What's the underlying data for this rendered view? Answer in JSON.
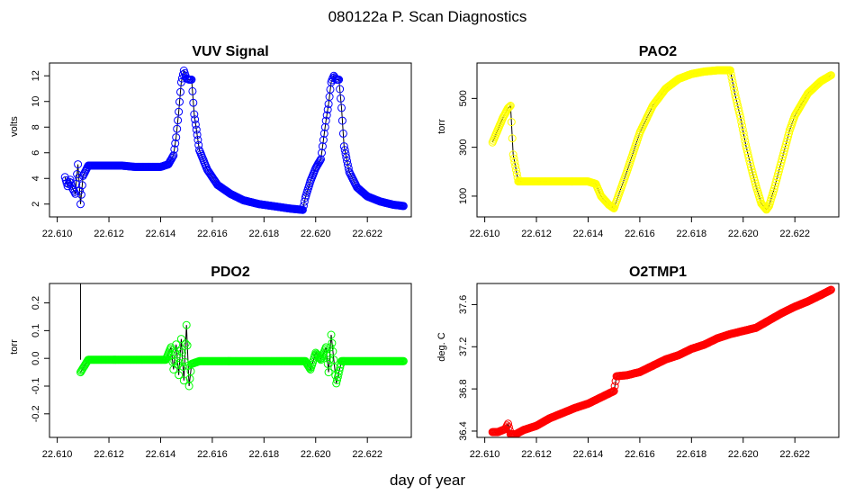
{
  "figure": {
    "title": "080122a   P. Scan Diagnostics",
    "xlabel": "day of year"
  },
  "chart_data": [
    {
      "type": "scatter",
      "title": "VUV Signal",
      "ylabel": "volts",
      "point_color": "#0000ff",
      "line_color": "#000000",
      "xlim": [
        22.6097,
        22.6237
      ],
      "ylim": [
        1.0,
        13.0
      ],
      "xticks": [
        22.61,
        22.612,
        22.614,
        22.616,
        22.618,
        22.62,
        22.622
      ],
      "xtick_labels": [
        "22.610",
        "22.612",
        "22.614",
        "22.616",
        "22.618",
        "22.620",
        "22.622"
      ],
      "yticks": [
        2,
        4,
        6,
        8,
        10,
        12
      ],
      "ytick_labels": [
        "2",
        "4",
        "6",
        "8",
        "10",
        "12"
      ],
      "series": [
        {
          "name": "VUV",
          "x": [
            22.6103,
            22.6104,
            22.6105,
            22.6106,
            22.6107,
            22.6108,
            22.6109,
            22.611,
            22.6112,
            22.6115,
            22.612,
            22.6125,
            22.613,
            22.6135,
            22.614,
            22.6143,
            22.6145,
            22.6146,
            22.6147,
            22.6148,
            22.6149,
            22.615,
            22.6151,
            22.6152,
            22.6153,
            22.6155,
            22.6158,
            22.6162,
            22.6167,
            22.6172,
            22.6178,
            22.6185,
            22.619,
            22.6195,
            22.6196,
            22.6198,
            22.62,
            22.6202,
            22.6203,
            22.6204,
            22.6205,
            22.6206,
            22.6207,
            22.6208,
            22.6209,
            22.621,
            22.6211,
            22.6213,
            22.6216,
            22.622,
            22.6225,
            22.623,
            22.6234
          ],
          "y": [
            4.1,
            3.4,
            3.9,
            3.2,
            2.8,
            5.1,
            2.0,
            4.2,
            5.0,
            5.0,
            5.0,
            5.0,
            4.9,
            4.9,
            4.9,
            5.1,
            5.8,
            7.2,
            9.2,
            11.5,
            12.4,
            11.8,
            11.7,
            11.7,
            9.0,
            6.2,
            4.7,
            3.5,
            2.8,
            2.3,
            2.0,
            1.8,
            1.65,
            1.55,
            2.5,
            3.8,
            4.8,
            5.5,
            7.0,
            8.5,
            9.8,
            11.5,
            12.0,
            11.7,
            11.7,
            9.5,
            6.5,
            4.5,
            3.3,
            2.6,
            2.2,
            1.95,
            1.85
          ]
        }
      ]
    },
    {
      "type": "scatter",
      "title": "PAO2",
      "ylabel": "torr",
      "point_color": "#ffff00",
      "line_color": "#000000",
      "xlim": [
        22.6097,
        22.6237
      ],
      "ylim": [
        15,
        645
      ],
      "xticks": [
        22.61,
        22.612,
        22.614,
        22.616,
        22.618,
        22.62,
        22.622
      ],
      "xtick_labels": [
        "22.610",
        "22.612",
        "22.614",
        "22.616",
        "22.618",
        "22.620",
        "22.622"
      ],
      "yticks": [
        100,
        300,
        500
      ],
      "ytick_labels": [
        "100",
        "300",
        "500"
      ],
      "series": [
        {
          "name": "PAO2",
          "x": [
            22.6103,
            22.6105,
            22.6107,
            22.6109,
            22.611,
            22.6111,
            22.6113,
            22.6118,
            22.6125,
            22.613,
            22.6135,
            22.614,
            22.6143,
            22.6145,
            22.6148,
            22.615,
            22.6152,
            22.6155,
            22.616,
            22.6165,
            22.617,
            22.6175,
            22.618,
            22.6185,
            22.619,
            22.6195,
            22.6197,
            22.6199,
            22.6201,
            22.6203,
            22.6205,
            22.6207,
            22.6209,
            22.621,
            22.6212,
            22.6215,
            22.6218,
            22.622,
            22.6225,
            22.623,
            22.6234
          ],
          "y": [
            320,
            370,
            420,
            460,
            470,
            270,
            160,
            160,
            160,
            160,
            160,
            160,
            150,
            100,
            65,
            50,
            110,
            200,
            360,
            470,
            540,
            580,
            600,
            610,
            615,
            615,
            510,
            420,
            310,
            220,
            140,
            70,
            45,
            60,
            130,
            250,
            370,
            430,
            520,
            570,
            595
          ]
        }
      ]
    },
    {
      "type": "scatter",
      "title": "PDO2",
      "ylabel": "torr",
      "point_color": "#00ff00",
      "line_color": "#000000",
      "xlim": [
        22.6097,
        22.6237
      ],
      "ylim": [
        -0.285,
        0.27
      ],
      "xticks": [
        22.61,
        22.612,
        22.614,
        22.616,
        22.618,
        22.62,
        22.622
      ],
      "xtick_labels": [
        "22.610",
        "22.612",
        "22.614",
        "22.616",
        "22.618",
        "22.620",
        "22.622"
      ],
      "yticks": [
        -0.2,
        -0.1,
        0.0,
        0.1,
        0.2
      ],
      "ytick_labels": [
        "-0.2",
        "-0.1",
        "0.0",
        "0.1",
        "0.2"
      ],
      "series": [
        {
          "name": "PDO2",
          "x": [
            22.6109,
            22.6112,
            22.6125,
            22.6135,
            22.6142,
            22.6144,
            22.6145,
            22.6146,
            22.6147,
            22.6148,
            22.6149,
            22.615,
            22.6151,
            22.6152,
            22.6155,
            22.617,
            22.618,
            22.619,
            22.6196,
            22.6198,
            22.62,
            22.6202,
            22.6204,
            22.6205,
            22.6206,
            22.6207,
            22.6208,
            22.621,
            22.6215,
            22.622,
            22.6225,
            22.6234
          ],
          "y": [
            -0.05,
            -0.005,
            -0.005,
            -0.005,
            -0.005,
            0.04,
            -0.04,
            0.05,
            -0.06,
            0.07,
            -0.08,
            0.12,
            -0.1,
            -0.02,
            -0.01,
            -0.01,
            -0.01,
            -0.01,
            -0.01,
            -0.04,
            0.02,
            -0.005,
            0.04,
            -0.05,
            0.085,
            -0.005,
            -0.09,
            -0.01,
            -0.01,
            -0.01,
            -0.01,
            -0.01
          ]
        }
      ],
      "spike": {
        "x": 22.6109,
        "y_top": 0.27,
        "y_bottom": -0.005
      }
    },
    {
      "type": "scatter",
      "title": "O2TMP1",
      "ylabel": "deg. C",
      "point_color": "#ff0000",
      "line_color": "#000000",
      "xlim": [
        22.6097,
        22.6237
      ],
      "ylim": [
        36.34,
        37.8
      ],
      "xticks": [
        22.61,
        22.612,
        22.614,
        22.616,
        22.618,
        22.62,
        22.622
      ],
      "xtick_labels": [
        "22.610",
        "22.612",
        "22.614",
        "22.616",
        "22.618",
        "22.620",
        "22.622"
      ],
      "yticks": [
        36.4,
        36.8,
        37.2,
        37.6
      ],
      "ytick_labels": [
        "36.4",
        "36.8",
        "37.2",
        "37.6"
      ],
      "series": [
        {
          "name": "O2TMP1",
          "x": [
            22.6103,
            22.6105,
            22.6108,
            22.6109,
            22.611,
            22.6112,
            22.6115,
            22.612,
            22.6125,
            22.613,
            22.6135,
            22.614,
            22.6145,
            22.615,
            22.6151,
            22.6155,
            22.616,
            22.6165,
            22.617,
            22.6175,
            22.618,
            22.6185,
            22.619,
            22.6195,
            22.62,
            22.6205,
            22.621,
            22.6215,
            22.622,
            22.6225,
            22.623,
            22.6234
          ],
          "y": [
            36.39,
            36.39,
            36.42,
            36.47,
            36.37,
            36.37,
            36.41,
            36.45,
            36.52,
            36.57,
            36.62,
            36.66,
            36.72,
            36.78,
            36.92,
            36.93,
            36.96,
            37.02,
            37.08,
            37.12,
            37.18,
            37.22,
            37.28,
            37.32,
            37.35,
            37.38,
            37.45,
            37.52,
            37.58,
            37.63,
            37.69,
            37.74
          ]
        }
      ]
    }
  ]
}
